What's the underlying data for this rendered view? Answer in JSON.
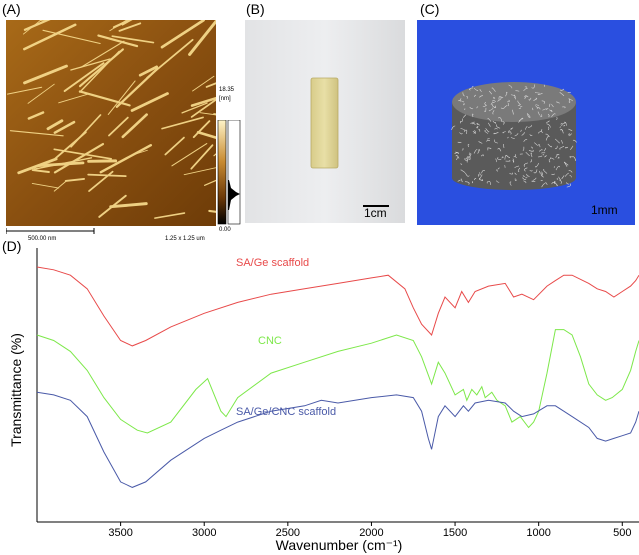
{
  "panels": {
    "a": {
      "label": "(A)",
      "scale_bar": "500.00 nm",
      "area": "1.25 x 1.25 um",
      "colorbar_max": "18.35",
      "colorbar_unit": "[nm]",
      "colorbar_min": "0.00"
    },
    "b": {
      "label": "(B)",
      "scale_bar": "1cm"
    },
    "c": {
      "label": "(C)",
      "scale_bar": "1mm"
    },
    "d": {
      "label": "(D)"
    }
  },
  "colors": {
    "sa_ge": "#e84a4a",
    "cnc": "#7de84a",
    "sa_ge_cnc": "#4a5aa8",
    "afm_bg": "#9a5a10",
    "microct_bg": "#2a4fe0"
  },
  "chart_data": {
    "type": "line",
    "xlabel": "Wavenumber (cm⁻¹)",
    "ylabel": "Transmittance (%)",
    "xlim": [
      4000,
      400
    ],
    "x_ticks": [
      3500,
      3000,
      2500,
      2000,
      1500,
      1000,
      500
    ],
    "x_tick_labels": [
      "3500",
      "3000",
      "2500",
      "2000",
      "1500",
      "1000",
      "500"
    ],
    "y_ticks_shown": false,
    "series": [
      {
        "name": "SA/Ge scaffold",
        "x": [
          4000,
          3900,
          3800,
          3700,
          3600,
          3500,
          3430,
          3350,
          3200,
          3000,
          2800,
          2600,
          2400,
          2200,
          2000,
          1900,
          1800,
          1750,
          1700,
          1640,
          1600,
          1560,
          1500,
          1460,
          1420,
          1380,
          1300,
          1200,
          1150,
          1100,
          1030,
          950,
          900,
          850,
          800,
          700,
          650,
          600,
          550,
          500,
          450,
          420,
          400
        ],
        "y": [
          93,
          92,
          90,
          85,
          75,
          66,
          64,
          66,
          71,
          76,
          80,
          83,
          85,
          87,
          89,
          90,
          85,
          78,
          72,
          68,
          76,
          82,
          78,
          84,
          80,
          84,
          86,
          87,
          82,
          83,
          81,
          86,
          88,
          90,
          90,
          87,
          85,
          84,
          82,
          84,
          86,
          88,
          90
        ]
      },
      {
        "name": "CNC",
        "x": [
          4000,
          3900,
          3800,
          3700,
          3600,
          3500,
          3400,
          3340,
          3200,
          3050,
          2980,
          2900,
          2870,
          2800,
          2600,
          2400,
          2200,
          2000,
          1850,
          1750,
          1700,
          1640,
          1600,
          1560,
          1500,
          1450,
          1430,
          1400,
          1370,
          1340,
          1320,
          1280,
          1250,
          1200,
          1160,
          1110,
          1060,
          1030,
          1000,
          950,
          900,
          850,
          800,
          750,
          700,
          650,
          600,
          560,
          500,
          450,
          420,
          400
        ],
        "y": [
          68,
          66,
          62,
          55,
          45,
          37,
          33,
          32,
          36,
          48,
          52,
          40,
          38,
          45,
          54,
          58,
          62,
          65,
          68,
          66,
          60,
          50,
          58,
          54,
          46,
          48,
          44,
          48,
          46,
          49,
          45,
          47,
          44,
          42,
          36,
          38,
          34,
          36,
          40,
          54,
          70,
          70,
          68,
          60,
          50,
          46,
          44,
          45,
          48,
          55,
          62,
          66
        ]
      },
      {
        "name": "SA/Ge/CNC scaffold",
        "x": [
          4000,
          3900,
          3800,
          3700,
          3600,
          3500,
          3430,
          3350,
          3200,
          3000,
          2900,
          2800,
          2600,
          2400,
          2300,
          2200,
          2000,
          1850,
          1750,
          1700,
          1660,
          1640,
          1600,
          1560,
          1500,
          1450,
          1420,
          1380,
          1300,
          1200,
          1150,
          1100,
          1030,
          950,
          900,
          850,
          800,
          700,
          650,
          600,
          550,
          500,
          450,
          420,
          400
        ],
        "y": [
          47,
          46,
          44,
          38,
          25,
          14,
          12,
          14,
          22,
          30,
          33,
          36,
          40,
          42,
          44,
          43,
          45,
          46,
          45,
          40,
          30,
          26,
          38,
          42,
          38,
          42,
          40,
          43,
          44,
          43,
          40,
          38,
          39,
          42,
          42,
          40,
          38,
          34,
          30,
          29,
          30,
          31,
          32,
          36,
          40
        ]
      }
    ]
  }
}
